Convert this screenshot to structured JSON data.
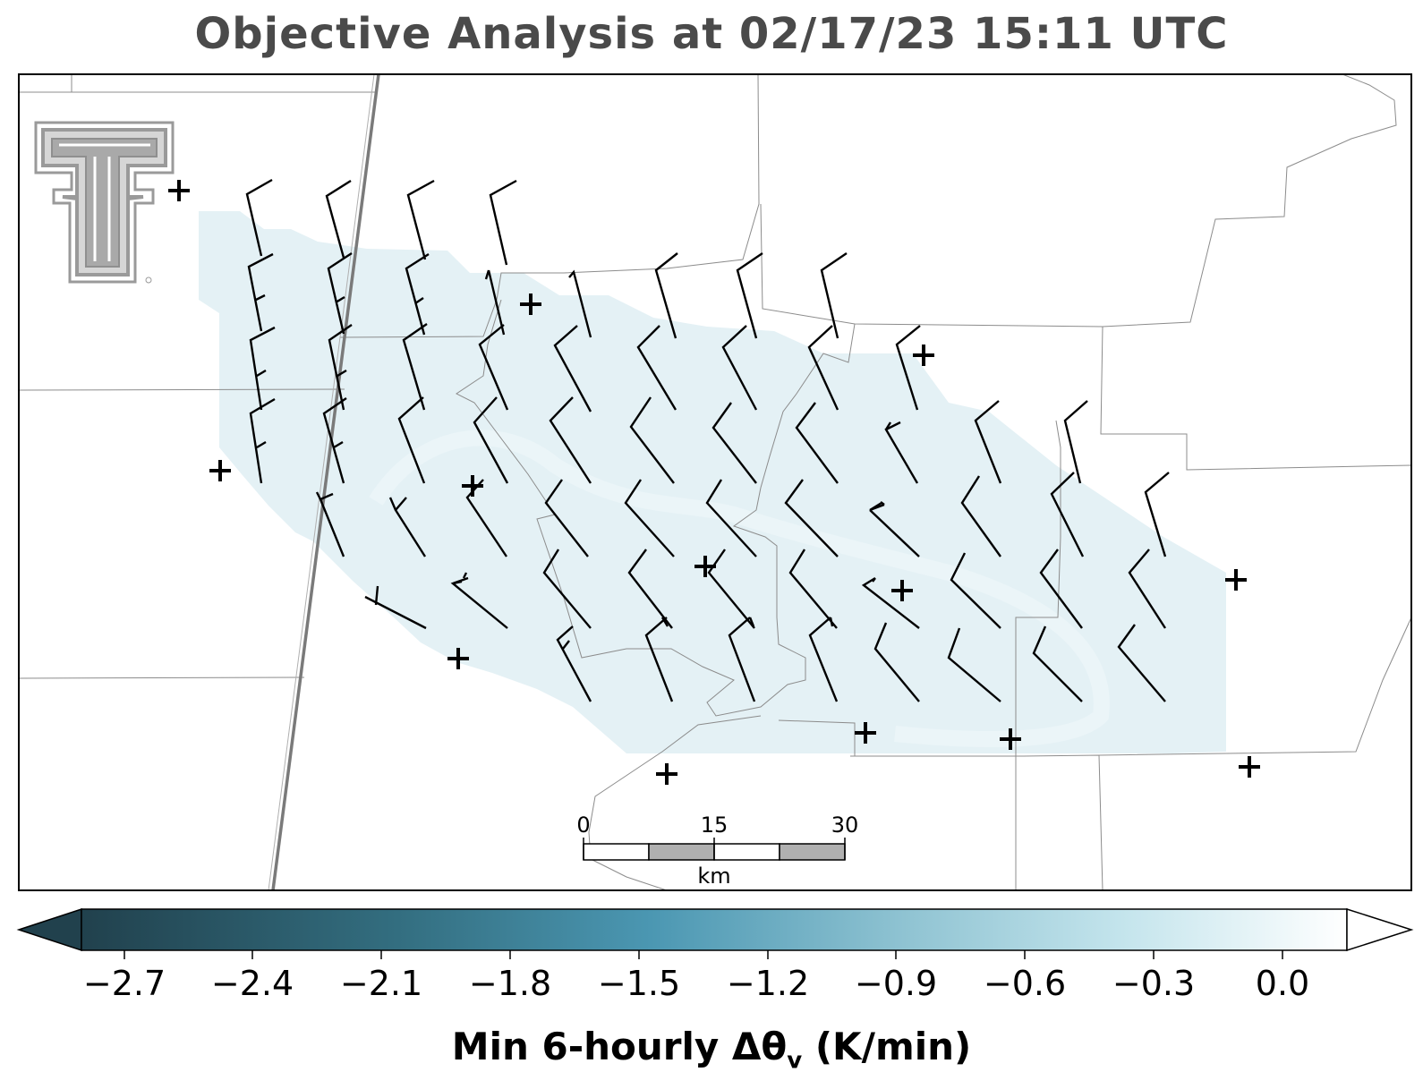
{
  "title": "Objective Analysis at 02/17/23 15:11 UTC",
  "map": {
    "logo": "texas-tech-double-t-logo",
    "scale_bar": {
      "labels": [
        "0",
        "15",
        "30"
      ],
      "unit": "km"
    },
    "shading_color": "#e4f1f5",
    "barb_color": "#000000",
    "station_marker": "+"
  },
  "colorbar": {
    "ticks": [
      "−2.7",
      "−2.4",
      "−2.1",
      "−1.8",
      "−1.5",
      "−1.2",
      "−0.9",
      "−0.6",
      "−0.3",
      "0.0"
    ],
    "min_color": "#21414d",
    "mid_color": "#4b97b2",
    "light_color": "#c3e4ec",
    "max_color": "#ffffff",
    "extend": "both"
  },
  "colorbar_label": {
    "prefix": "Min 6-hourly Δθ",
    "subscript": "v",
    "suffix": " (K/min)"
  },
  "colors": {
    "title": "#4a4a4a",
    "border": "#000000",
    "county_lines": "#8c8c8c",
    "dryline": "#7a7a7a"
  }
}
